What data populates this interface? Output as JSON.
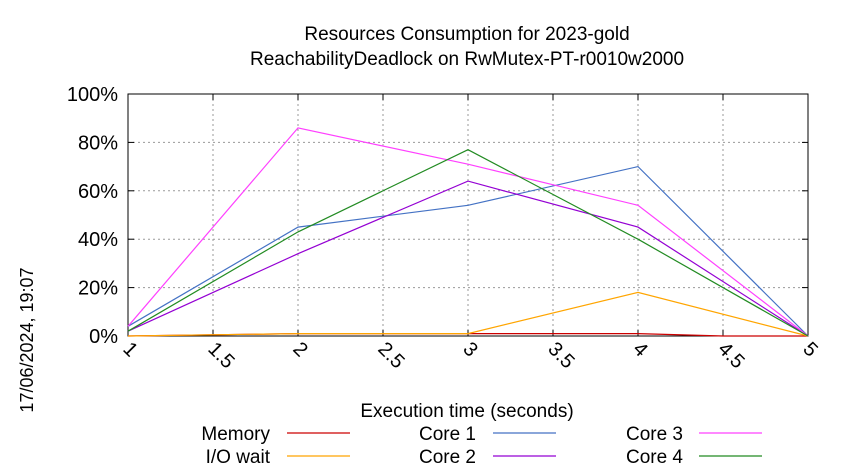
{
  "chart_data": {
    "type": "line",
    "title": [
      "Resources Consumption for 2023-gold",
      "ReachabilityDeadlock on RwMutex-PT-r0010w2000"
    ],
    "xlabel": "Execution time (seconds)",
    "ylabel": "",
    "timestamp": "17/06/2024, 19:07",
    "xlim": [
      1,
      5
    ],
    "ylim": [
      0,
      100
    ],
    "xticks": [
      1,
      1.5,
      2,
      2.5,
      3,
      3.5,
      4,
      4.5,
      5
    ],
    "xtick_labels": [
      "1",
      "1.5",
      "2",
      "2.5",
      "3",
      "3.5",
      "4",
      "4.5",
      "5"
    ],
    "yticks": [
      0,
      20,
      40,
      60,
      80,
      100
    ],
    "ytick_labels": [
      "0%",
      "20%",
      "40%",
      "60%",
      "80%",
      "100%"
    ],
    "grid": true,
    "legend_position": "bottom",
    "series": [
      {
        "name": "Memory",
        "color": "#cc0000",
        "x": [
          1,
          2,
          3,
          4,
          4.5,
          5
        ],
        "y": [
          0,
          1,
          1,
          1,
          0,
          0
        ]
      },
      {
        "name": "I/O wait",
        "color": "#ffa500",
        "x": [
          1,
          2,
          3,
          4,
          5
        ],
        "y": [
          0,
          1,
          1,
          18,
          0
        ]
      },
      {
        "name": "Core 1",
        "color": "#4472c4",
        "x": [
          1,
          2,
          3,
          4,
          5
        ],
        "y": [
          4,
          45,
          54,
          70,
          0
        ]
      },
      {
        "name": "Core 2",
        "color": "#9400d3",
        "x": [
          1,
          2,
          3,
          4,
          5
        ],
        "y": [
          2,
          34,
          64,
          45,
          0
        ]
      },
      {
        "name": "Core 3",
        "color": "#ff40ff",
        "x": [
          1,
          2,
          3,
          4,
          5
        ],
        "y": [
          4,
          86,
          71,
          54,
          0
        ]
      },
      {
        "name": "Core 4",
        "color": "#228b22",
        "x": [
          1,
          2,
          3,
          4,
          5
        ],
        "y": [
          2,
          43,
          77,
          40,
          0
        ]
      }
    ]
  }
}
